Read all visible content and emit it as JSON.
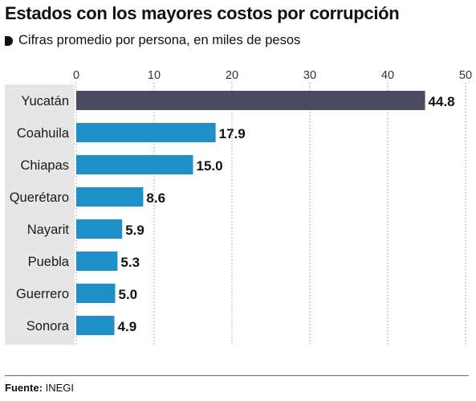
{
  "title": "Estados con los mayores costos por corrupción",
  "subtitle": "Cifras promedio por persona, en miles de pesos",
  "source_label": "Fuente:",
  "source_value": "INEGI",
  "colors": {
    "highlight": "#4a4a63",
    "bar": "#1f8fc7",
    "band": "#e6e6e6",
    "grid": "#999999",
    "text": "#1a1a1a"
  },
  "chart_data": {
    "type": "bar",
    "orientation": "horizontal",
    "title": "Estados con los mayores costos por corrupción",
    "subtitle": "Cifras promedio por persona, en miles de pesos",
    "categories": [
      "Yucatán",
      "Coahuila",
      "Chiapas",
      "Querétaro",
      "Nayarit",
      "Puebla",
      "Guerrero",
      "Sonora"
    ],
    "values": [
      44.8,
      17.9,
      15.0,
      8.6,
      5.9,
      5.3,
      5.0,
      4.9
    ],
    "value_labels": [
      "44.8",
      "17.9",
      "15.0",
      "8.6",
      "5.9",
      "5.3",
      "5.0",
      "4.9"
    ],
    "xlim": [
      0,
      50
    ],
    "xticks": [
      "0",
      "10",
      "20",
      "30",
      "40",
      "50"
    ],
    "grid": true,
    "highlight": "Yucatán"
  }
}
